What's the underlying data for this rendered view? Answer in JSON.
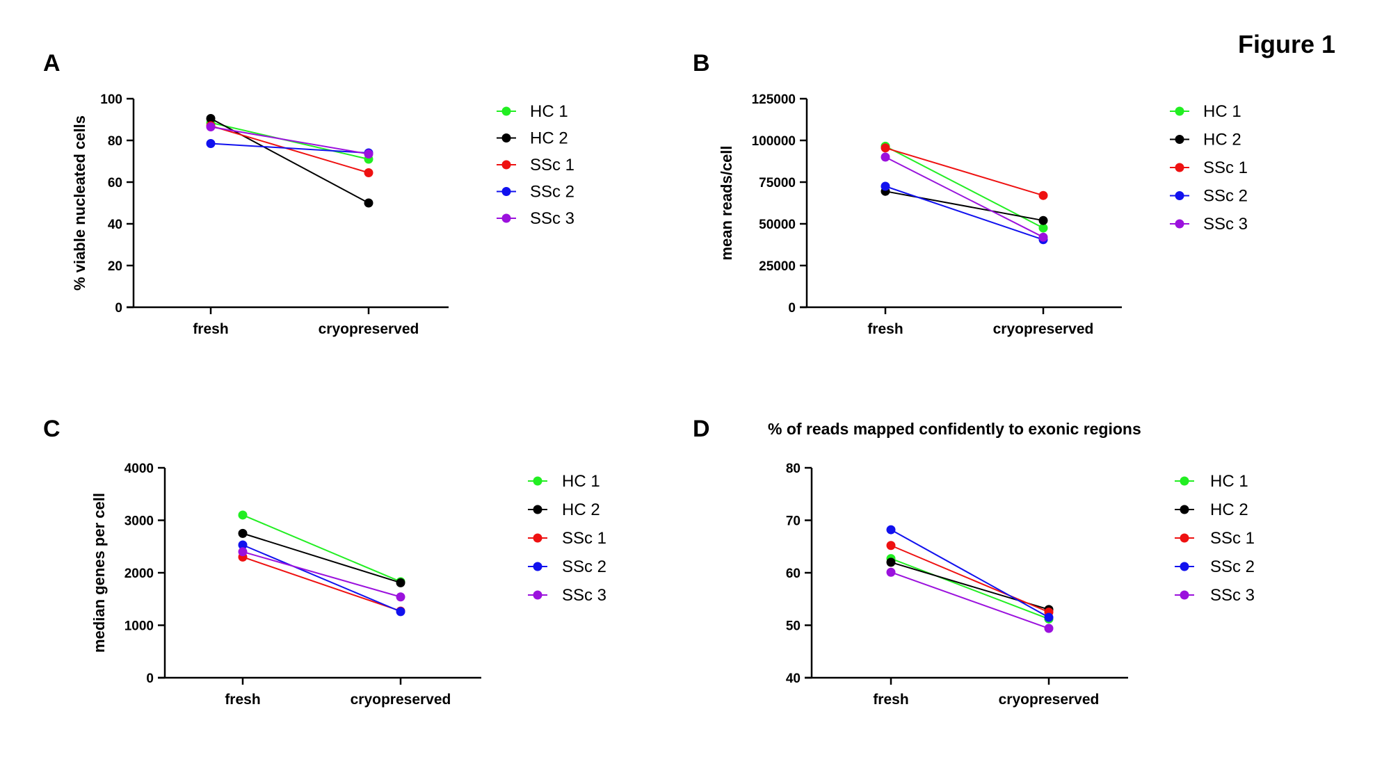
{
  "figure_title": "Figure 1",
  "chart_data": [
    {
      "panel": "A",
      "type": "line",
      "title": "",
      "xlabel": "",
      "ylabel": "% viable nucleated cells",
      "categories": [
        "fresh",
        "cryopreserved"
      ],
      "ylim": [
        0,
        100
      ],
      "yticks": [
        0,
        20,
        40,
        60,
        80,
        100
      ],
      "ytick_labels": [
        "0",
        "20",
        "40",
        "60",
        "80",
        "100"
      ],
      "legend_position": "right",
      "series": [
        {
          "name": "HC 1",
          "color": "#22ee22",
          "values": [
            88.5,
            71
          ]
        },
        {
          "name": "HC 2",
          "color": "#000000",
          "values": [
            90.5,
            50
          ]
        },
        {
          "name": "SSc 1",
          "color": "#ee1111",
          "values": [
            87,
            64.5
          ]
        },
        {
          "name": "SSc 2",
          "color": "#1111ee",
          "values": [
            78.5,
            74
          ]
        },
        {
          "name": "SSc 3",
          "color": "#9b11dd",
          "values": [
            86.5,
            73.5
          ]
        }
      ]
    },
    {
      "panel": "B",
      "type": "line",
      "title": "",
      "xlabel": "",
      "ylabel": "mean reads/cell",
      "categories": [
        "fresh",
        "cryopreserved"
      ],
      "ylim": [
        0,
        125000
      ],
      "yticks": [
        0,
        25000,
        50000,
        75000,
        100000,
        125000
      ],
      "ytick_labels": [
        "0",
        "25000",
        "50000",
        "75000",
        "100000",
        "125000"
      ],
      "legend_position": "right",
      "series": [
        {
          "name": "HC 1",
          "color": "#22ee22",
          "values": [
            96500,
            47500
          ]
        },
        {
          "name": "HC 2",
          "color": "#000000",
          "values": [
            69500,
            52000
          ]
        },
        {
          "name": "SSc 1",
          "color": "#ee1111",
          "values": [
            95500,
            67000
          ]
        },
        {
          "name": "SSc 2",
          "color": "#1111ee",
          "values": [
            72500,
            40500
          ]
        },
        {
          "name": "SSc 3",
          "color": "#9b11dd",
          "values": [
            90000,
            42000
          ]
        }
      ]
    },
    {
      "panel": "C",
      "type": "line",
      "title": "",
      "xlabel": "",
      "ylabel": "median genes per cell",
      "categories": [
        "fresh",
        "cryopreserved"
      ],
      "ylim": [
        0,
        4000
      ],
      "yticks": [
        0,
        1000,
        2000,
        3000,
        4000
      ],
      "ytick_labels": [
        "0",
        "1000",
        "2000",
        "3000",
        "4000"
      ],
      "legend_position": "right",
      "series": [
        {
          "name": "HC 1",
          "color": "#22ee22",
          "values": [
            3100,
            1830
          ]
        },
        {
          "name": "HC 2",
          "color": "#000000",
          "values": [
            2750,
            1810
          ]
        },
        {
          "name": "SSc 1",
          "color": "#ee1111",
          "values": [
            2300,
            1270
          ]
        },
        {
          "name": "SSc 2",
          "color": "#1111ee",
          "values": [
            2530,
            1260
          ]
        },
        {
          "name": "SSc 3",
          "color": "#9b11dd",
          "values": [
            2400,
            1540
          ]
        }
      ]
    },
    {
      "panel": "D",
      "type": "line",
      "title": "% of reads mapped confidently to exonic regions",
      "xlabel": "",
      "ylabel": "",
      "categories": [
        "fresh",
        "cryopreserved"
      ],
      "ylim": [
        40,
        80
      ],
      "yticks": [
        40,
        50,
        60,
        70,
        80
      ],
      "ytick_labels": [
        "40",
        "50",
        "60",
        "70",
        "80"
      ],
      "legend_position": "right",
      "series": [
        {
          "name": "HC 1",
          "color": "#22ee22",
          "values": [
            62.7,
            51.2
          ]
        },
        {
          "name": "HC 2",
          "color": "#000000",
          "values": [
            62,
            53
          ]
        },
        {
          "name": "SSc 1",
          "color": "#ee1111",
          "values": [
            65.2,
            52.5
          ]
        },
        {
          "name": "SSc 2",
          "color": "#1111ee",
          "values": [
            68.2,
            51.5
          ]
        },
        {
          "name": "SSc 3",
          "color": "#9b11dd",
          "values": [
            60.1,
            49.4
          ]
        }
      ]
    }
  ]
}
